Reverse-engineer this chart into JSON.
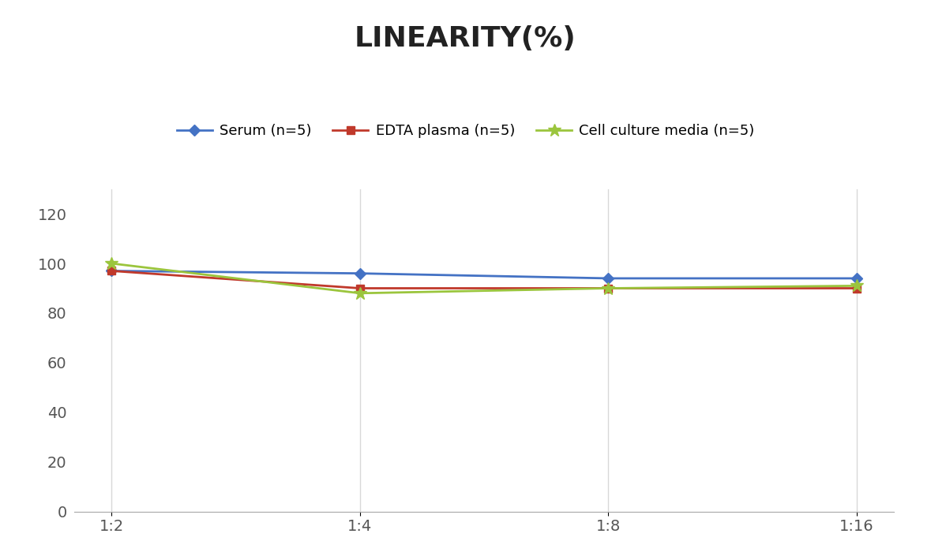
{
  "title": "LINEARITY(%)",
  "x_labels": [
    "1:2",
    "1:4",
    "1:8",
    "1:16"
  ],
  "series": [
    {
      "name": "Serum (n=5)",
      "values": [
        97,
        96,
        94,
        94
      ],
      "color": "#4472C4",
      "marker": "D",
      "marker_size": 7
    },
    {
      "name": "EDTA plasma (n=5)",
      "values": [
        97,
        90,
        90,
        90
      ],
      "color": "#C0392B",
      "marker": "s",
      "marker_size": 7
    },
    {
      "name": "Cell culture media (n=5)",
      "values": [
        100,
        88,
        90,
        91
      ],
      "color": "#9BC53D",
      "marker": "*",
      "marker_size": 12
    }
  ],
  "ylim": [
    0,
    130
  ],
  "yticks": [
    0,
    20,
    40,
    60,
    80,
    100,
    120
  ],
  "title_fontsize": 26,
  "legend_fontsize": 13,
  "tick_fontsize": 14,
  "background_color": "#ffffff",
  "grid_color": "#d8d8d8",
  "line_width": 2.0
}
